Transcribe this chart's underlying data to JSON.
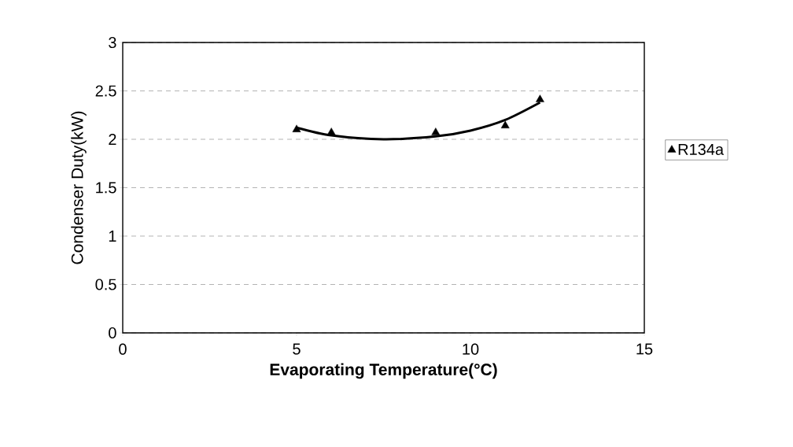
{
  "chart_data": {
    "type": "scatter",
    "xlabel": "Evaporating Temperature(°C)",
    "ylabel": "Condenser Duty(kW)",
    "xlim": [
      0,
      15
    ],
    "xticks": [
      0,
      5,
      10,
      15
    ],
    "ylim": [
      0,
      3
    ],
    "yticks": [
      0,
      0.5,
      1,
      1.5,
      2,
      2.5,
      3
    ],
    "grid": "y",
    "legend": "right",
    "series": [
      {
        "name": "R134a",
        "marker": "triangle",
        "color": "#000000",
        "x": [
          5,
          6,
          9,
          11,
          12
        ],
        "values": [
          2.1,
          2.07,
          2.07,
          2.14,
          2.41
        ]
      },
      {
        "type": "line",
        "color": "#000000",
        "line_style": "solid",
        "x": [
          5,
          6,
          7.5,
          9,
          10,
          11,
          12
        ],
        "values": [
          2.12,
          2.04,
          2.0,
          2.03,
          2.09,
          2.2,
          2.38
        ]
      }
    ]
  }
}
